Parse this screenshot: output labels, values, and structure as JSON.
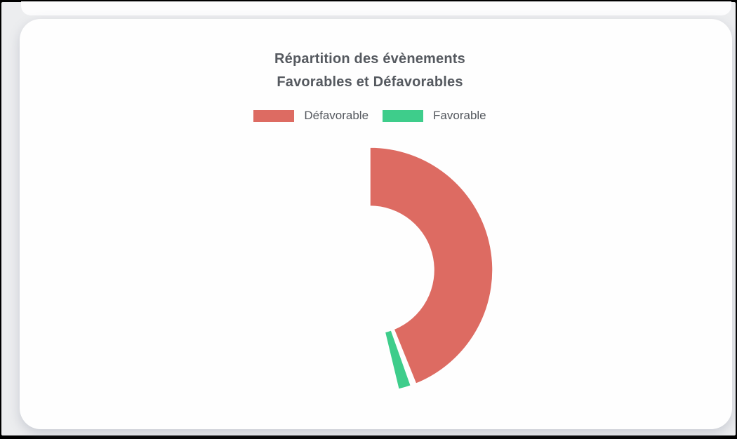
{
  "frame": {
    "outer_background": "#000000",
    "page_background": "#ecedef",
    "top_card_edge_color": "#fcfcfd",
    "card_background": "#fefefe"
  },
  "chart_card": {
    "title_line1": "Répartition des évènements",
    "title_line2": "Favorables et Défavorables",
    "title_color": "#55595f",
    "legend_text_color": "#54585e",
    "legend": [
      {
        "label": "Défavorable",
        "color": "#dd6b62"
      },
      {
        "label": "Favorable",
        "color": "#3ecd8b"
      }
    ]
  },
  "chart_data": {
    "type": "doughnut",
    "title": "Répartition des évènements Favorables et Défavorables",
    "legend_position": "top",
    "legend_entries": [
      "Défavorable",
      "Favorable"
    ],
    "series": [
      {
        "name": "Défavorable",
        "color": "#dd6b62",
        "start_deg": 0,
        "end_deg": 158
      },
      {
        "name": "Favorable",
        "color": "#3ecd8b",
        "start_deg": 160.5,
        "end_deg": 166.5
      }
    ],
    "geometry": {
      "cx": 527,
      "cy": 385,
      "outer_radius": 175,
      "inner_radius": 91,
      "cutout_percent": 52,
      "border_color": "#ffffff",
      "border_width": 1.5,
      "angles_measured_clockwise_from_top": true
    }
  }
}
